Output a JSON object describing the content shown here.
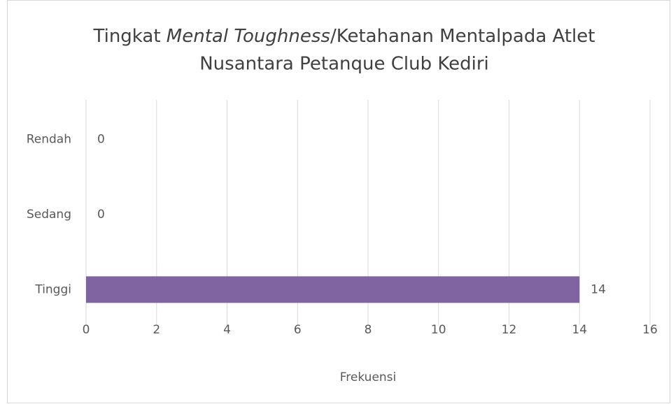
{
  "chart_data": {
    "type": "bar",
    "orientation": "horizontal",
    "title": [
      "Tingkat ",
      "Mental Toughness",
      "/Ketahanan Mentalpada Atlet",
      "Nusantara Petanque Club Kediri"
    ],
    "x_label": "Frekuensi",
    "categories": [
      "Rendah",
      "Sedang",
      "Tinggi"
    ],
    "values": [
      0,
      0,
      14
    ],
    "color": "#8064a2",
    "xlim": [
      0,
      16
    ],
    "xticks": [
      0,
      2,
      4,
      6,
      8,
      10,
      12,
      14,
      16
    ],
    "grid": true
  }
}
